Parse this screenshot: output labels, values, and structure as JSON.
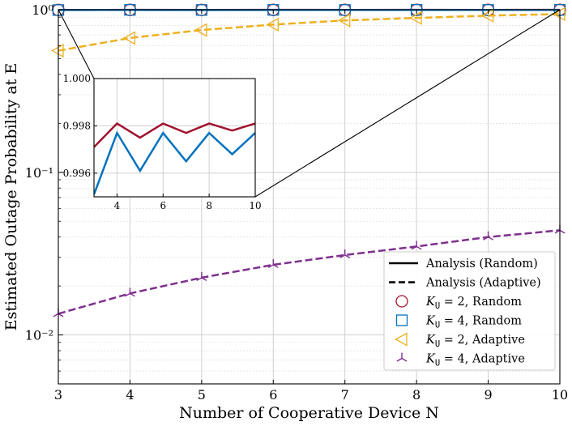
{
  "chart_data": {
    "type": "line",
    "title": "",
    "xlabel": "Number of Cooperative Device N",
    "ylabel": "Estimated Outage Probability at E",
    "yscale": "log",
    "xlim": [
      3,
      10
    ],
    "ylim": [
      0.005,
      1.0
    ],
    "grid": true,
    "legend_position": "lower-right",
    "x_ticks": [
      3,
      4,
      5,
      6,
      7,
      8,
      9,
      10
    ],
    "x_tick_labels": [
      "3",
      "4",
      "5",
      "6",
      "7",
      "8",
      "9",
      "10"
    ],
    "y_ticks": [
      0.01,
      0.1,
      1.0
    ],
    "y_tick_labels": [
      "10⁻²",
      "10⁻¹",
      "10⁰"
    ],
    "series": [
      {
        "name": "K_U = 2, Random",
        "style": "line",
        "marker": "circle",
        "color": "#a2142f",
        "x": [
          3,
          4,
          5,
          6,
          7,
          8,
          9,
          10
        ],
        "values": [
          0.9971,
          0.9981,
          0.9975,
          0.9981,
          0.9977,
          0.9981,
          0.9978,
          0.9981
        ]
      },
      {
        "name": "K_U = 4, Random",
        "style": "line",
        "marker": "square",
        "color": "#0072bd",
        "x": [
          3,
          4,
          5,
          6,
          7,
          8,
          9,
          10
        ],
        "values": [
          0.9951,
          0.9977,
          0.9961,
          0.9977,
          0.9965,
          0.9977,
          0.9968,
          0.9977
        ]
      },
      {
        "name": "K_U = 2, Adaptive",
        "style": "dashed",
        "marker": "triangle-left",
        "color": "#edb120",
        "x": [
          3,
          4,
          5,
          6,
          7,
          8,
          9,
          10
        ],
        "values": [
          0.56,
          0.67,
          0.75,
          0.81,
          0.86,
          0.89,
          0.92,
          0.94
        ]
      },
      {
        "name": "K_U = 4, Adaptive",
        "style": "dashed",
        "marker": "tri-down",
        "color": "#7e2f8e",
        "x": [
          3,
          4,
          5,
          6,
          7,
          8,
          9,
          10
        ],
        "values": [
          0.0135,
          0.018,
          0.0225,
          0.027,
          0.031,
          0.035,
          0.04,
          0.044
        ]
      }
    ],
    "inset": {
      "xlim": [
        3,
        10
      ],
      "ylim": [
        0.995,
        1.0
      ],
      "x_ticks": [
        4,
        6,
        8,
        10
      ],
      "x_tick_labels": [
        "4",
        "6",
        "8",
        "10"
      ],
      "y_ticks": [
        0.996,
        0.998,
        1.0
      ],
      "y_tick_labels": [
        "0.996",
        "0.998",
        "1.000"
      ]
    },
    "legend": [
      {
        "label": "Analysis (Random)",
        "kind": "solid-line",
        "color": "#000000"
      },
      {
        "label": "Analysis (Adaptive)",
        "kind": "dashed-line",
        "color": "#000000"
      },
      {
        "label": "K_U = 2, Random",
        "math": "K",
        "sub": "U",
        "rest": " = 2, Random",
        "kind": "circle",
        "color": "#a2142f"
      },
      {
        "label": "K_U = 4, Random",
        "math": "K",
        "sub": "U",
        "rest": " = 4, Random",
        "kind": "square",
        "color": "#0072bd"
      },
      {
        "label": "K_U = 2, Adaptive",
        "math": "K",
        "sub": "U",
        "rest": " = 2, Adaptive",
        "kind": "triangle-left",
        "color": "#edb120"
      },
      {
        "label": "K_U = 4, Adaptive",
        "math": "K",
        "sub": "U",
        "rest": " = 4, Adaptive",
        "kind": "tri-down",
        "color": "#7e2f8e"
      }
    ]
  }
}
